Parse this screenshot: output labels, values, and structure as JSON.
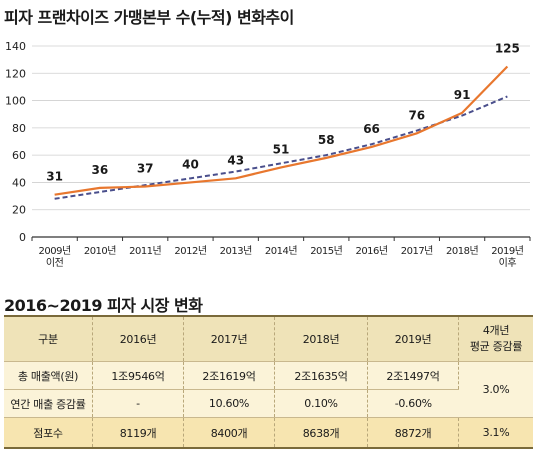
{
  "chart_title": "피자 프랜차이즈 가맹본부 수(누적) 변화추이",
  "chart_data": {
    "type": "line",
    "title": "피자 프랜차이즈 가맹본부 수(누적) 변화추이",
    "categories": [
      "2009년 이전",
      "2010년",
      "2011년",
      "2012년",
      "2013년",
      "2014년",
      "2015년",
      "2016년",
      "2017년",
      "2018년",
      "2019년 이후"
    ],
    "category_lines": [
      [
        "2009년",
        "이전"
      ],
      [
        "2010년"
      ],
      [
        "2011년"
      ],
      [
        "2012년"
      ],
      [
        "2013년"
      ],
      [
        "2014년"
      ],
      [
        "2015년"
      ],
      [
        "2016년"
      ],
      [
        "2017년"
      ],
      [
        "2018년"
      ],
      [
        "2019년",
        "이후"
      ]
    ],
    "series": [
      {
        "values": [
          31,
          36,
          37,
          40,
          43,
          51,
          58,
          66,
          76,
          91,
          125
        ],
        "color": "#e8772e",
        "style": "solid"
      }
    ],
    "trend_values": [
      28,
      33,
      38,
      43,
      48,
      54,
      60,
      68,
      78,
      89,
      103
    ],
    "trend_color": "#4a4f8c",
    "data_labels": [
      "31",
      "36",
      "37",
      "40",
      "43",
      "51",
      "58",
      "66",
      "76",
      "91",
      "125"
    ],
    "yticks": [
      "0",
      "20",
      "40",
      "60",
      "80",
      "100",
      "120",
      "140"
    ],
    "ylim": [
      0,
      140
    ],
    "grid": true,
    "xlabel": "",
    "ylabel": ""
  },
  "table_title": "2016~2019 피자 시장 변화",
  "table": {
    "headers": [
      "구분",
      "2016년",
      "2017년",
      "2018년",
      "2019년"
    ],
    "avg_header_lines": [
      "4개년",
      "평균 증감률"
    ],
    "rows": [
      {
        "label": "총 매출액(원)",
        "cells": [
          "1조9546억",
          "2조1619억",
          "2조1635억",
          "2조1497억"
        ]
      },
      {
        "label": "연간 매출 증감률",
        "cells": [
          "-",
          "10.60%",
          "0.10%",
          "-0.60%"
        ]
      },
      {
        "label": "점포수",
        "cells": [
          "8119개",
          "8400개",
          "8638개",
          "8872개"
        ]
      }
    ],
    "avg_sales": "3.0%",
    "avg_stores": "3.1%"
  }
}
